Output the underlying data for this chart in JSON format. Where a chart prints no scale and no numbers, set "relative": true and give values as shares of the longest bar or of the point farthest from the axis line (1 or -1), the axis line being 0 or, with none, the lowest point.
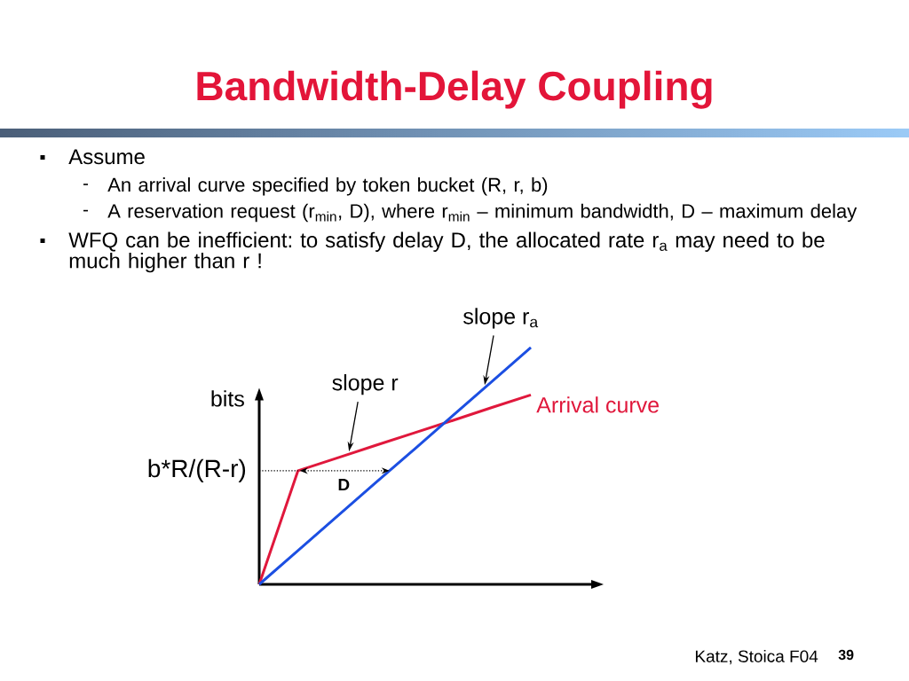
{
  "chart_data": {
    "type": "line",
    "title": "Bandwidth-Delay Coupling",
    "ylabel": "bits",
    "relative": true,
    "line_style": "solid",
    "categories": [
      null,
      null,
      null,
      null,
      null,
      null,
      null,
      null
    ],
    "series": [
      {
        "name": "Arrival curve",
        "color": "#e0183c",
        "values": [
          0,
          0.48,
          0.533,
          0.587,
          0.64,
          0.693,
          0.747,
          0.8
        ]
      },
      {
        "color": "#1c4fe2",
        "values": [
          0,
          0.143,
          0.286,
          0.429,
          0.571,
          0.714,
          0.857,
          1
        ]
      }
    ],
    "ref_lines": [
      {
        "axis": "y",
        "value": 0.48,
        "label": "b*R/(R-r)",
        "line_style": "dotted",
        "color": "#000000"
      }
    ],
    "annotations": [
      "Assume",
      "An arrival curve specified by token bucket (R, r, b)",
      "A reservation request (r$_{min}$, D), where r$_{min}$ – minimum bandwidth, D – maximum delay",
      "WFQ can be inefficient: to satisfy delay D, the allocated rate r$_{a}$ may need to be much higher than r !",
      {
        "text": "slope r",
        "y": 0.55
      },
      "slope r$_{a}$",
      {
        "text": "D",
        "y": 0.48
      },
      "Katz, Stoica F04",
      "39"
    ]
  }
}
